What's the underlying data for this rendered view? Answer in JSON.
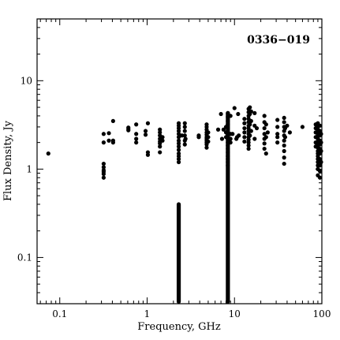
{
  "chart_data": {
    "type": "scatter",
    "title": "0336−019",
    "xlabel": "Frequency, GHz",
    "ylabel": "Flux Density, Jy",
    "x_scale": "log",
    "y_scale": "log",
    "xlim": [
      0.055,
      100
    ],
    "ylim": [
      0.03,
      50
    ],
    "x_ticks": [
      {
        "value": 0.1,
        "label": "0.1"
      },
      {
        "value": 1,
        "label": "1"
      },
      {
        "value": 10,
        "label": "10"
      },
      {
        "value": 100,
        "label": "100"
      }
    ],
    "y_ticks": [
      {
        "value": 0.1,
        "label": "0.1"
      },
      {
        "value": 1,
        "label": "1"
      },
      {
        "value": 10,
        "label": "10"
      }
    ],
    "grid": false,
    "marker_color": "#000000",
    "bands": [
      {
        "x": 2.3,
        "y_min": 0.03,
        "y_max": 0.4
      },
      {
        "x": 8.4,
        "y_min": 0.03,
        "y_max": 4.3
      }
    ],
    "points": [
      [
        0.074,
        1.5
      ],
      [
        0.318,
        2.5
      ],
      [
        0.318,
        2.0
      ],
      [
        0.318,
        1.15
      ],
      [
        0.318,
        1.05
      ],
      [
        0.318,
        0.97
      ],
      [
        0.318,
        0.93
      ],
      [
        0.318,
        0.88
      ],
      [
        0.318,
        0.8
      ],
      [
        0.365,
        2.55
      ],
      [
        0.365,
        2.1
      ],
      [
        0.408,
        3.5
      ],
      [
        0.408,
        2.1
      ],
      [
        0.408,
        2.0
      ],
      [
        0.61,
        2.95
      ],
      [
        0.61,
        2.75
      ],
      [
        0.61,
        2.85
      ],
      [
        0.75,
        3.2
      ],
      [
        0.75,
        2.2
      ],
      [
        0.75,
        2.0
      ],
      [
        0.75,
        2.5
      ],
      [
        0.96,
        2.7
      ],
      [
        0.96,
        2.45
      ],
      [
        1.02,
        3.3
      ],
      [
        1.02,
        1.55
      ],
      [
        1.02,
        1.45
      ],
      [
        1.4,
        2.8
      ],
      [
        1.4,
        2.6
      ],
      [
        1.4,
        2.4
      ],
      [
        1.4,
        2.2
      ],
      [
        1.4,
        2.05
      ],
      [
        1.4,
        1.95
      ],
      [
        1.4,
        1.8
      ],
      [
        1.4,
        1.55
      ],
      [
        1.5,
        2.3
      ],
      [
        1.5,
        2.1
      ],
      [
        2.3,
        3.3
      ],
      [
        2.3,
        3.1
      ],
      [
        2.3,
        2.9
      ],
      [
        2.3,
        2.7
      ],
      [
        2.3,
        2.5
      ],
      [
        2.3,
        2.3
      ],
      [
        2.3,
        2.1
      ],
      [
        2.3,
        1.95
      ],
      [
        2.3,
        1.8
      ],
      [
        2.3,
        1.65
      ],
      [
        2.3,
        1.5
      ],
      [
        2.3,
        1.4
      ],
      [
        2.3,
        1.3
      ],
      [
        2.3,
        1.2
      ],
      [
        2.5,
        2.4
      ],
      [
        2.7,
        3.3
      ],
      [
        2.7,
        3.0
      ],
      [
        2.7,
        2.7
      ],
      [
        2.7,
        2.4
      ],
      [
        2.7,
        2.1
      ],
      [
        2.7,
        1.9
      ],
      [
        2.75,
        2.2
      ],
      [
        3.9,
        2.3
      ],
      [
        3.9,
        2.4
      ],
      [
        4.8,
        3.2
      ],
      [
        4.8,
        3.0
      ],
      [
        4.8,
        2.8
      ],
      [
        4.8,
        2.6
      ],
      [
        4.8,
        2.45
      ],
      [
        4.8,
        2.3
      ],
      [
        4.8,
        2.2
      ],
      [
        4.8,
        2.1
      ],
      [
        4.8,
        2.0
      ],
      [
        4.8,
        1.9
      ],
      [
        4.8,
        1.75
      ],
      [
        5.0,
        2.6
      ],
      [
        5.0,
        2.3
      ],
      [
        5.0,
        2.05
      ],
      [
        6.5,
        2.8
      ],
      [
        7.0,
        4.2
      ],
      [
        7.2,
        2.2
      ],
      [
        7.5,
        2.8
      ],
      [
        8.0,
        2.6
      ],
      [
        8.0,
        2.3
      ],
      [
        8.0,
        3.0
      ],
      [
        8.4,
        4.3
      ],
      [
        8.4,
        3.9
      ],
      [
        8.4,
        3.5
      ],
      [
        8.4,
        3.2
      ],
      [
        8.4,
        2.9
      ],
      [
        8.4,
        2.6
      ],
      [
        8.4,
        2.4
      ],
      [
        8.4,
        2.2
      ],
      [
        8.4,
        2.0
      ],
      [
        8.4,
        1.85
      ],
      [
        8.4,
        1.7
      ],
      [
        8.4,
        1.55
      ],
      [
        8.4,
        1.4
      ],
      [
        8.4,
        1.3
      ],
      [
        8.4,
        1.2
      ],
      [
        8.4,
        1.1
      ],
      [
        9.0,
        4.0
      ],
      [
        9.0,
        2.5
      ],
      [
        9.0,
        2.2
      ],
      [
        9.0,
        2.0
      ],
      [
        9.5,
        2.5
      ],
      [
        10.0,
        4.9
      ],
      [
        10.5,
        2.2
      ],
      [
        10.7,
        2.3
      ],
      [
        11.0,
        4.2
      ],
      [
        11.2,
        2.4
      ],
      [
        13.0,
        3.7
      ],
      [
        13.0,
        3.3
      ],
      [
        13.0,
        2.9
      ],
      [
        13.0,
        2.6
      ],
      [
        13.0,
        2.3
      ],
      [
        13.0,
        2.05
      ],
      [
        14.5,
        4.8
      ],
      [
        14.5,
        4.4
      ],
      [
        14.5,
        4.0
      ],
      [
        14.5,
        3.7
      ],
      [
        14.5,
        3.4
      ],
      [
        14.5,
        3.1
      ],
      [
        14.5,
        2.9
      ],
      [
        14.5,
        2.7
      ],
      [
        14.5,
        2.5
      ],
      [
        14.5,
        2.3
      ],
      [
        14.5,
        2.15
      ],
      [
        14.5,
        2.0
      ],
      [
        14.5,
        1.85
      ],
      [
        14.5,
        1.7
      ],
      [
        15.0,
        5.0
      ],
      [
        15.0,
        4.2
      ],
      [
        15.0,
        3.2
      ],
      [
        15.0,
        2.4
      ],
      [
        15.5,
        4.5
      ],
      [
        15.5,
        3.5
      ],
      [
        15.5,
        2.7
      ],
      [
        17.0,
        4.3
      ],
      [
        17.0,
        3.1
      ],
      [
        17.0,
        2.2
      ],
      [
        18.0,
        2.9
      ],
      [
        22.0,
        4.0
      ],
      [
        22.0,
        3.4
      ],
      [
        22.0,
        2.9
      ],
      [
        22.0,
        2.5
      ],
      [
        22.0,
        2.2
      ],
      [
        22.0,
        1.95
      ],
      [
        22.0,
        1.7
      ],
      [
        23.0,
        3.2
      ],
      [
        23.0,
        2.3
      ],
      [
        23.0,
        1.5
      ],
      [
        24.0,
        2.6
      ],
      [
        31.0,
        3.6
      ],
      [
        31.0,
        3.0
      ],
      [
        31.0,
        2.5
      ],
      [
        31.0,
        2.3
      ],
      [
        31.0,
        2.0
      ],
      [
        37.0,
        3.8
      ],
      [
        37.0,
        3.4
      ],
      [
        37.0,
        3.0
      ],
      [
        37.0,
        2.7
      ],
      [
        37.0,
        2.4
      ],
      [
        37.0,
        2.1
      ],
      [
        37.0,
        1.85
      ],
      [
        37.0,
        1.6
      ],
      [
        37.0,
        1.35
      ],
      [
        37.0,
        1.15
      ],
      [
        38.0,
        2.9
      ],
      [
        38.0,
        2.3
      ],
      [
        40.0,
        3.1
      ],
      [
        43.0,
        2.6
      ],
      [
        60.0,
        3.0
      ],
      [
        85.0,
        3.2
      ],
      [
        85.0,
        2.9
      ],
      [
        85.0,
        2.6
      ],
      [
        85.0,
        2.3
      ],
      [
        85.0,
        2.0
      ],
      [
        85.0,
        1.8
      ],
      [
        90.0,
        3.3
      ],
      [
        90.0,
        3.0
      ],
      [
        90.0,
        2.8
      ],
      [
        90.0,
        2.6
      ],
      [
        90.0,
        2.4
      ],
      [
        90.0,
        2.2
      ],
      [
        90.0,
        2.05
      ],
      [
        90.0,
        1.9
      ],
      [
        90.0,
        1.75
      ],
      [
        90.0,
        1.6
      ],
      [
        90.0,
        1.5
      ],
      [
        90.0,
        1.4
      ],
      [
        90.0,
        1.3
      ],
      [
        90.0,
        1.2
      ],
      [
        90.0,
        1.1
      ],
      [
        90.0,
        1.0
      ],
      [
        90.0,
        0.85
      ],
      [
        95.0,
        3.1
      ],
      [
        95.0,
        2.7
      ],
      [
        95.0,
        2.4
      ],
      [
        95.0,
        2.1
      ],
      [
        95.0,
        1.9
      ],
      [
        95.0,
        1.7
      ],
      [
        95.0,
        1.5
      ],
      [
        95.0,
        1.3
      ],
      [
        95.0,
        1.1
      ],
      [
        95.0,
        0.95
      ],
      [
        95.0,
        0.8
      ],
      [
        98.0,
        2.5
      ],
      [
        98.0,
        2.0
      ],
      [
        98.0,
        1.6
      ],
      [
        98.0,
        1.2
      ]
    ]
  }
}
